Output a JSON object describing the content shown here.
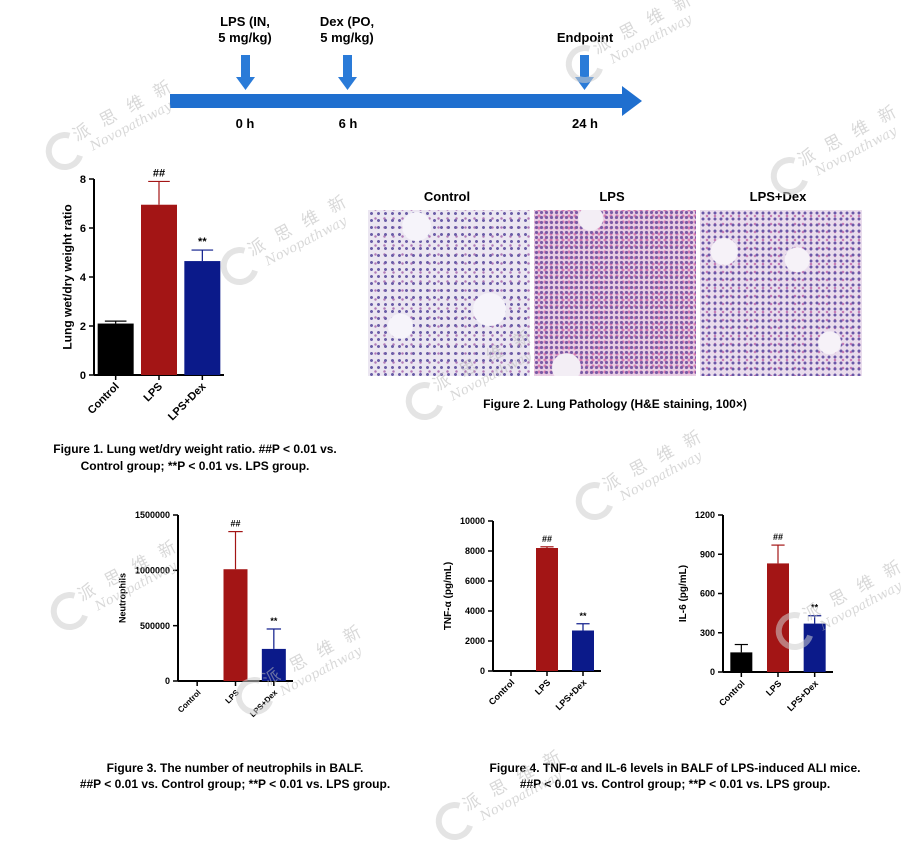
{
  "timeline": {
    "events": [
      {
        "label": "LPS (IN,\n5 mg/kg)",
        "time": "0 h"
      },
      {
        "label": "Dex (PO,\n5 mg/kg)",
        "time": "6 h"
      },
      {
        "label": "Endpoint",
        "time": "24 h"
      }
    ],
    "color": "#1f6fcf"
  },
  "watermark": {
    "cn": "派 思 维 新",
    "en": "Novopathway"
  },
  "figure2": {
    "titles": [
      "Control",
      "LPS",
      "LPS+Dex"
    ],
    "caption": "Figure 2. Lung Pathology (H&E staining, 100×)"
  },
  "captions": {
    "fig1_line1": "Figure 1. Lung wet/dry weight ratio. ##P < 0.01 vs.",
    "fig1_line2": "Control group; **P < 0.01 vs. LPS group.",
    "fig3_line1": "Figure 3. The number of neutrophils in BALF.",
    "fig3_line2": "##P < 0.01 vs. Control group; **P < 0.01 vs. LPS group.",
    "fig4_line1": "Figure 4. TNF-α and IL-6 levels in BALF of LPS-induced ALI mice.",
    "fig4_line2": "##P < 0.01 vs. Control group; **P < 0.01 vs. LPS group."
  },
  "colors": {
    "control": "#000000",
    "lps": "#a31515",
    "dex": "#0b1a8a"
  },
  "chart_data": [
    {
      "id": "fig1",
      "type": "bar",
      "categories": [
        "Control",
        "LPS",
        "LPS+Dex"
      ],
      "values": [
        2.1,
        6.95,
        4.65
      ],
      "errors": [
        0.1,
        0.95,
        0.45
      ],
      "annotations": [
        "",
        "##",
        "**"
      ],
      "ylabel": "Lung wet/dry weight ratio",
      "ylim": [
        0,
        8
      ],
      "yticks": [
        0,
        2,
        4,
        6,
        8
      ],
      "ytick_labels": [
        "0",
        "2",
        "4",
        "6",
        "8"
      ]
    },
    {
      "id": "fig3",
      "type": "bar",
      "categories": [
        "Control",
        "LPS",
        "LPS+Dex"
      ],
      "values": [
        0,
        1010000,
        290000
      ],
      "errors": [
        0,
        340000,
        180000
      ],
      "annotations": [
        "",
        "##",
        "**"
      ],
      "ylabel": "Neutrophils",
      "ylim": [
        0,
        1500000
      ],
      "yticks": [
        0,
        500000,
        1000000,
        1500000
      ],
      "ytick_labels": [
        "0",
        "500000",
        "1000000",
        "1500000"
      ]
    },
    {
      "id": "fig4a",
      "type": "bar",
      "categories": [
        "Control",
        "LPS",
        "LPS+Dex"
      ],
      "values": [
        0,
        8200,
        2700
      ],
      "errors": [
        0,
        80,
        450
      ],
      "annotations": [
        "",
        "##",
        "**"
      ],
      "ylabel": "TNF-α (pg/mL)",
      "ylim": [
        0,
        10000
      ],
      "yticks": [
        0,
        2000,
        4000,
        6000,
        8000,
        10000
      ],
      "ytick_labels": [
        "0",
        "2000",
        "4000",
        "6000",
        "8000",
        "10000"
      ]
    },
    {
      "id": "fig4b",
      "type": "bar",
      "categories": [
        "Control",
        "LPS",
        "LPS+Dex"
      ],
      "values": [
        150,
        830,
        370
      ],
      "errors": [
        60,
        140,
        60
      ],
      "annotations": [
        "",
        "##",
        "**"
      ],
      "ylabel": "IL-6 (pg/mL)",
      "ylim": [
        0,
        1200
      ],
      "yticks": [
        0,
        300,
        600,
        900,
        1200
      ],
      "ytick_labels": [
        "0",
        "300",
        "600",
        "900",
        "1200"
      ]
    }
  ]
}
